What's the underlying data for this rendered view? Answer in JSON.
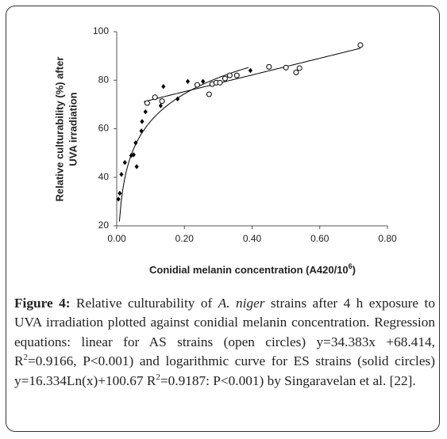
{
  "chart_data": {
    "type": "scatter",
    "y_label": [
      "Relative culturability (%) after",
      "UVA irradiation"
    ],
    "x_label": [
      {
        "text": "Conidial melanin concentration (A420/10",
        "style": "normal"
      },
      {
        "text": "6",
        "style": "sup"
      },
      {
        "text": ")",
        "style": "normal"
      }
    ],
    "xlim": [
      0,
      0.8
    ],
    "ylim": [
      20,
      100
    ],
    "xticks": [
      {
        "value": 0,
        "label": "0.00"
      },
      {
        "value": 0.2,
        "label": "0.20"
      },
      {
        "value": 0.4,
        "label": "0.40"
      },
      {
        "value": 0.6,
        "label": "0.60"
      },
      {
        "value": 0.8,
        "label": "0.80"
      }
    ],
    "yticks": [
      20,
      40,
      60,
      80,
      100
    ],
    "series": [
      {
        "marker": "filled",
        "color": "#000000",
        "x": [
          0.005,
          0.009,
          0.014,
          0.024,
          0.043,
          0.05,
          0.056,
          0.059,
          0.073,
          0.075,
          0.085,
          0.13,
          0.138,
          0.18,
          0.21,
          0.255,
          0.395
        ],
        "values": [
          31,
          33.4,
          41.2,
          46.1,
          49,
          49.3,
          54.2,
          44.4,
          59.1,
          63,
          67,
          69.5,
          77.4,
          72.3,
          79.5,
          79.5,
          84
        ]
      },
      {
        "marker": "open",
        "color": "#000000",
        "x": [
          0.09,
          0.113,
          0.134,
          0.238,
          0.273,
          0.282,
          0.294,
          0.305,
          0.32,
          0.334,
          0.355,
          0.45,
          0.5,
          0.53,
          0.54,
          0.72
        ],
        "values": [
          70.6,
          73,
          71.4,
          78.1,
          74.2,
          78.4,
          79,
          79,
          80.7,
          82,
          82,
          85.5,
          85.2,
          83.2,
          85,
          94.5
        ]
      }
    ],
    "trend_lines": [
      {
        "type": "linear",
        "slope": 34.383,
        "intercept": 68.414,
        "xrange": [
          0.08,
          0.72
        ],
        "color": "#000000"
      },
      {
        "type": "log",
        "slope": 16.334,
        "intercept": 100.67,
        "xrange": [
          0.008,
          0.39
        ],
        "color": "#000000"
      }
    ]
  },
  "caption": [
    {
      "text": "Figure 4:",
      "style": "bold"
    },
    {
      "text": " Relative culturability of ",
      "style": "normal"
    },
    {
      "text": "A. niger",
      "style": "italic"
    },
    {
      "text": " strains after 4 h exposure to UVA irradiation plotted against conidial melanin concentration. Regression equations: linear for AS strains (open circles) y=34.383x +68.414, R",
      "style": "normal"
    },
    {
      "text": "2",
      "style": "sup"
    },
    {
      "text": "=0.9166, P<0.001) and logarithmic curve for ES strains (solid circles) y=16.334Ln(x)+100.67 R",
      "style": "normal"
    },
    {
      "text": "2",
      "style": "sup"
    },
    {
      "text": "=0.9187: P<0.001) by Singaravelan et al. [22].",
      "style": "normal"
    }
  ]
}
